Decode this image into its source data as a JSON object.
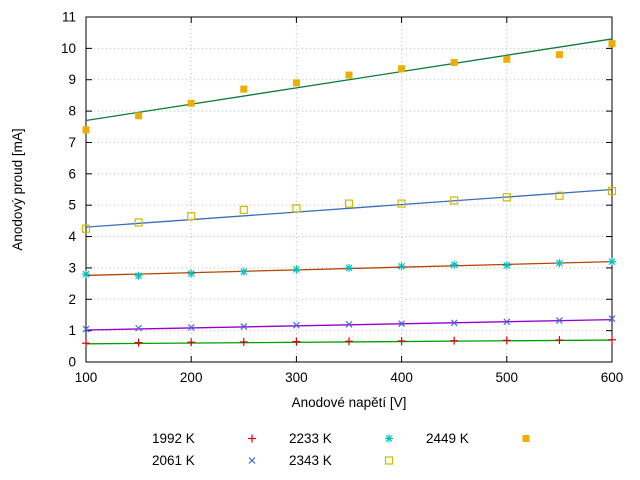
{
  "chart_data": {
    "type": "scatter",
    "title": "",
    "xlabel": "Anodové napětí [V]",
    "ylabel": "Anodový proud [mA]",
    "x_range": [
      100,
      600
    ],
    "y_range": [
      0,
      11
    ],
    "x_ticks": [
      100,
      200,
      300,
      400,
      500,
      600
    ],
    "y_ticks": [
      0,
      1,
      2,
      3,
      4,
      5,
      6,
      7,
      8,
      9,
      10,
      11
    ],
    "grid": "dotted",
    "legend_position": "below",
    "x": [
      100,
      150,
      200,
      250,
      300,
      350,
      400,
      450,
      500,
      550,
      600
    ],
    "series": [
      {
        "name": "1992 K",
        "marker": "plus",
        "marker_color": "#e00000",
        "line_color": "#00a000",
        "values": [
          0.6,
          0.62,
          0.63,
          0.64,
          0.65,
          0.66,
          0.67,
          0.68,
          0.69,
          0.7,
          0.71
        ],
        "fit_line": [
          0.58,
          0.7
        ],
        "legend_row": 0,
        "legend_col": 0
      },
      {
        "name": "2061 K",
        "marker": "cross",
        "marker_color": "#4169e1",
        "line_color": "#9400d3",
        "values": [
          1.05,
          1.08,
          1.1,
          1.13,
          1.17,
          1.2,
          1.22,
          1.25,
          1.28,
          1.32,
          1.38
        ],
        "fit_line": [
          1.02,
          1.35
        ],
        "legend_row": 1,
        "legend_col": 0
      },
      {
        "name": "2233 K",
        "marker": "asterisk",
        "marker_color": "#00c0c0",
        "line_color": "#b34700",
        "values": [
          2.8,
          2.75,
          2.82,
          2.88,
          2.95,
          3.0,
          3.05,
          3.1,
          3.08,
          3.15,
          3.2
        ],
        "fit_line": [
          2.76,
          3.2
        ],
        "legend_row": 0,
        "legend_col": 1
      },
      {
        "name": "2343 K",
        "marker": "open-square",
        "marker_color": "#cdbb00",
        "line_color": "#3b6fb5",
        "values": [
          4.25,
          4.45,
          4.65,
          4.85,
          4.9,
          5.05,
          5.05,
          5.15,
          5.25,
          5.3,
          5.45
        ],
        "fit_line": [
          4.3,
          5.5
        ],
        "legend_row": 1,
        "legend_col": 1
      },
      {
        "name": "2449 K",
        "marker": "filled-square",
        "marker_color": "#efad00",
        "line_color": "#0e7a3e",
        "values": [
          7.4,
          7.85,
          8.25,
          8.7,
          8.9,
          9.15,
          9.35,
          9.55,
          9.65,
          9.8,
          10.15
        ],
        "fit_line": [
          7.7,
          10.3
        ],
        "legend_row": 0,
        "legend_col": 2
      }
    ]
  },
  "colors": {
    "grid": "#bbbbbb",
    "border": "#000000",
    "text": "#000000"
  }
}
